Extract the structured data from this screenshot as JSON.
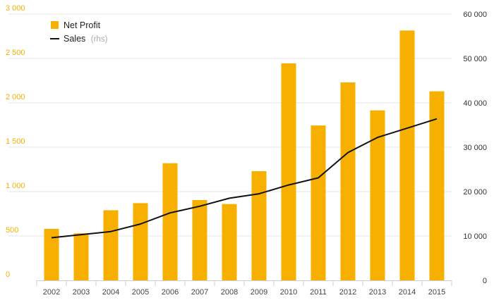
{
  "chart_data": {
    "type": "bar",
    "categories": [
      "2002",
      "2003",
      "2004",
      "2005",
      "2006",
      "2007",
      "2008",
      "2009",
      "2010",
      "2011",
      "2012",
      "2013",
      "2014",
      "2015"
    ],
    "series": [
      {
        "name": "Net Profit",
        "type": "bar",
        "axis": "left",
        "color": "#f7b000",
        "values": [
          580,
          530,
          790,
          870,
          1320,
          905,
          860,
          1230,
          2445,
          1745,
          2230,
          1915,
          2815,
          2130
        ]
      },
      {
        "name": "Sales",
        "name_suffix": "(rhs)",
        "type": "line",
        "axis": "right",
        "color": "#111111",
        "values": [
          9600,
          10300,
          11000,
          12700,
          15200,
          16700,
          18500,
          19500,
          21500,
          23100,
          28800,
          32200,
          34300,
          36400
        ]
      }
    ],
    "y_left": {
      "ylim": [
        0,
        3000
      ],
      "ticks": [
        0,
        500,
        1000,
        1500,
        2000,
        2500,
        3000
      ],
      "tick_labels": [
        "0",
        "500",
        "1 000",
        "1 500",
        "2 000",
        "2 500",
        "3 000"
      ],
      "color": "#f7b000"
    },
    "y_right": {
      "ylim": [
        0,
        60000
      ],
      "ticks": [
        0,
        10000,
        20000,
        30000,
        40000,
        50000,
        60000
      ],
      "tick_labels": [
        "0",
        "10 000",
        "20 000",
        "30 000",
        "40 000",
        "50 000",
        "60 000"
      ],
      "color": "#333333"
    },
    "grid": true,
    "legend_position": "top-left"
  }
}
